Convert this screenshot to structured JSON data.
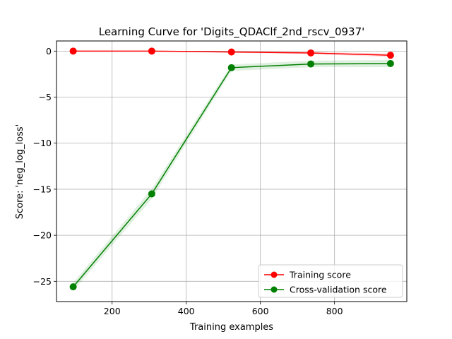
{
  "chart_data": {
    "type": "line",
    "title": "Learning Curve for 'Digits_QDAClf_2nd_rscv_0937'",
    "xlabel": "Training examples",
    "ylabel": "Score: 'neg_log_loss'",
    "xlim": [
      50,
      995
    ],
    "ylim": [
      -27.2,
      1.1
    ],
    "xticks": [
      200,
      400,
      600,
      800
    ],
    "yticks": [
      0,
      -5,
      -10,
      -15,
      -20,
      -25
    ],
    "xtick_labels": [
      "200",
      "400",
      "600",
      "800"
    ],
    "ytick_labels": [
      "0",
      "−5",
      "−10",
      "−15",
      "−20",
      "−25"
    ],
    "grid": true,
    "legend_position": "lower right",
    "x": [
      95,
      307,
      522,
      736,
      951
    ],
    "series": [
      {
        "name": "Training score",
        "color": "#ff0000",
        "fill_color": "#ff0000",
        "values": [
          0.0,
          0.0,
          -0.1,
          -0.2,
          -0.45
        ],
        "std": [
          0.02,
          0.02,
          0.08,
          0.12,
          0.2
        ]
      },
      {
        "name": "Cross-validation score",
        "color": "#008000",
        "fill_color": "#008000",
        "values": [
          -25.6,
          -15.5,
          -1.8,
          -1.4,
          -1.35
        ],
        "std": [
          0.45,
          0.55,
          0.35,
          0.35,
          0.4
        ]
      }
    ]
  }
}
